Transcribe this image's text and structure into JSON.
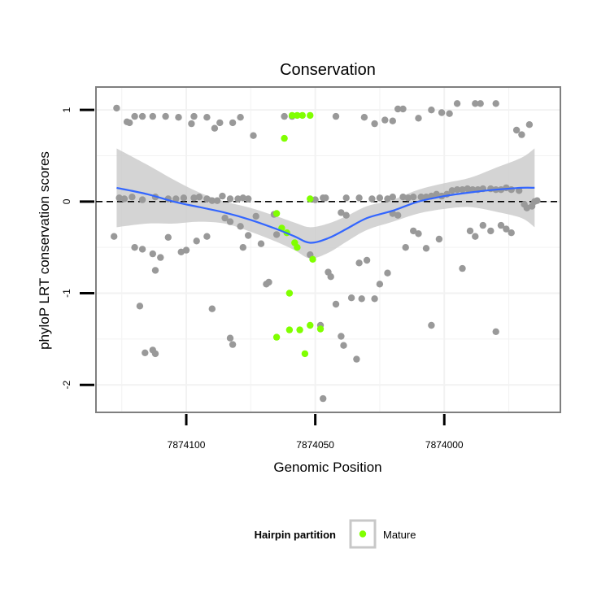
{
  "chart_data": {
    "type": "scatter",
    "title": "Conservation",
    "xlabel": "Genomic Position",
    "ylabel": "phyloP LRT conservation scores",
    "x_reversed": true,
    "xlim": [
      7874135,
      7873955
    ],
    "ylim": [
      -2.3,
      1.25
    ],
    "x_ticks": [
      7874100,
      7874050,
      7874000
    ],
    "x_tick_labels": [
      "7874100",
      "7874050",
      "7874000"
    ],
    "y_ticks": [
      -2,
      -1,
      0,
      1
    ],
    "y_tick_labels": [
      "-2",
      "-1",
      "0",
      "1"
    ],
    "grid": true,
    "reference_line": {
      "y": 0,
      "style": "dashed",
      "color": "#000000"
    },
    "colors": {
      "points": "#999999",
      "mature": "#80ff00",
      "smooth": "#3366ff",
      "ribbon": "#cccccc",
      "panel_border": "#7f7f7f",
      "grid": "#f2f2f2"
    },
    "legend": {
      "title": "Hairpin partition",
      "placement": "bottom",
      "entries": [
        {
          "label": "Mature",
          "color": "#80ff00"
        }
      ]
    },
    "series": [
      {
        "key": "other",
        "color": "#999999",
        "points": [
          [
            7874127,
            1.02
          ],
          [
            7874123,
            0.87
          ],
          [
            7874122,
            0.86
          ],
          [
            7874120,
            0.93
          ],
          [
            7874117,
            0.93
          ],
          [
            7874113,
            0.93
          ],
          [
            7874108,
            0.93
          ],
          [
            7874103,
            0.92
          ],
          [
            7874098,
            0.85
          ],
          [
            7874097,
            0.93
          ],
          [
            7874092,
            0.92
          ],
          [
            7874089,
            0.8
          ],
          [
            7874087,
            0.86
          ],
          [
            7874082,
            0.86
          ],
          [
            7874079,
            0.92
          ],
          [
            7874074,
            0.72
          ],
          [
            7874062,
            0.93
          ],
          [
            7874059,
            0.93
          ],
          [
            7874042,
            0.93
          ],
          [
            7874031,
            0.92
          ],
          [
            7874027,
            0.85
          ],
          [
            7874023,
            0.89
          ],
          [
            7874020,
            0.88
          ],
          [
            7874018,
            1.01
          ],
          [
            7874016,
            1.01
          ],
          [
            7874010,
            0.91
          ],
          [
            7874005,
            1.0
          ],
          [
            7874001,
            0.97
          ],
          [
            7873998,
            0.96
          ],
          [
            7873995,
            1.07
          ],
          [
            7873988,
            1.07
          ],
          [
            7873986,
            1.07
          ],
          [
            7873980,
            1.07
          ],
          [
            7873972,
            0.78
          ],
          [
            7873970,
            0.73
          ],
          [
            7873967,
            0.84
          ],
          [
            7874126,
            0.04
          ],
          [
            7874124,
            0.03
          ],
          [
            7874121,
            0.05
          ],
          [
            7874117,
            0.02
          ],
          [
            7874112,
            0.05
          ],
          [
            7874107,
            0.03
          ],
          [
            7874104,
            0.03
          ],
          [
            7874101,
            0.04
          ],
          [
            7874097,
            0.04
          ],
          [
            7874095,
            0.05
          ],
          [
            7874092,
            0.03
          ],
          [
            7874090,
            0.01
          ],
          [
            7874088,
            0.01
          ],
          [
            7874086,
            0.06
          ],
          [
            7874083,
            0.03
          ],
          [
            7874080,
            0.03
          ],
          [
            7874078,
            0.04
          ],
          [
            7874076,
            0.03
          ],
          [
            7874050,
            0.02
          ],
          [
            7874047,
            0.04
          ],
          [
            7874046,
            0.04
          ],
          [
            7874038,
            0.04
          ],
          [
            7874033,
            0.04
          ],
          [
            7874028,
            0.03
          ],
          [
            7874025,
            0.04
          ],
          [
            7874022,
            0.03
          ],
          [
            7874020,
            0.05
          ],
          [
            7874016,
            0.05
          ],
          [
            7874014,
            0.04
          ],
          [
            7874012,
            0.05
          ],
          [
            7874009,
            0.05
          ],
          [
            7874007,
            0.05
          ],
          [
            7874005,
            0.06
          ],
          [
            7874003,
            0.08
          ],
          [
            7874001,
            0.06
          ],
          [
            7873999,
            0.08
          ],
          [
            7873997,
            0.12
          ],
          [
            7873995,
            0.13
          ],
          [
            7873993,
            0.13
          ],
          [
            7873991,
            0.14
          ],
          [
            7873989,
            0.13
          ],
          [
            7873987,
            0.13
          ],
          [
            7873985,
            0.14
          ],
          [
            7873982,
            0.14
          ],
          [
            7873980,
            0.13
          ],
          [
            7873978,
            0.13
          ],
          [
            7873976,
            0.15
          ],
          [
            7873974,
            0.13
          ],
          [
            7873971,
            0.12
          ],
          [
            7873969,
            -0.03
          ],
          [
            7873968,
            -0.07
          ],
          [
            7873966,
            -0.05
          ],
          [
            7873965,
            0.0
          ],
          [
            7873964,
            0.01
          ],
          [
            7874128,
            -0.38
          ],
          [
            7874120,
            -0.5
          ],
          [
            7874117,
            -0.52
          ],
          [
            7874113,
            -0.57
          ],
          [
            7874112,
            -0.75
          ],
          [
            7874110,
            -0.61
          ],
          [
            7874107,
            -0.39
          ],
          [
            7874102,
            -0.55
          ],
          [
            7874100,
            -0.53
          ],
          [
            7874096,
            -0.43
          ],
          [
            7874092,
            -0.38
          ],
          [
            7874090,
            -1.17
          ],
          [
            7874085,
            -0.18
          ],
          [
            7874083,
            -0.22
          ],
          [
            7874079,
            -0.27
          ],
          [
            7874078,
            -0.5
          ],
          [
            7874076,
            -0.37
          ],
          [
            7874073,
            -0.16
          ],
          [
            7874071,
            -0.46
          ],
          [
            7874069,
            -0.9
          ],
          [
            7874068,
            -0.88
          ],
          [
            7874066,
            -0.14
          ],
          [
            7874065,
            -0.36
          ],
          [
            7874052,
            -0.58
          ],
          [
            7874048,
            -1.35
          ],
          [
            7874045,
            -0.77
          ],
          [
            7874044,
            -0.82
          ],
          [
            7874042,
            -1.12
          ],
          [
            7874040,
            -0.12
          ],
          [
            7874038,
            -0.15
          ],
          [
            7874036,
            -1.05
          ],
          [
            7874034,
            -1.72
          ],
          [
            7874033,
            -0.67
          ],
          [
            7874032,
            -1.06
          ],
          [
            7874030,
            -0.64
          ],
          [
            7874027,
            -1.06
          ],
          [
            7874025,
            -0.9
          ],
          [
            7874022,
            -0.78
          ],
          [
            7874020,
            -0.13
          ],
          [
            7874018,
            -0.15
          ],
          [
            7874015,
            -0.5
          ],
          [
            7874012,
            -0.32
          ],
          [
            7874010,
            -0.35
          ],
          [
            7874007,
            -0.51
          ],
          [
            7874005,
            -1.35
          ],
          [
            7874002,
            -0.41
          ],
          [
            7873993,
            -0.73
          ],
          [
            7873990,
            -0.32
          ],
          [
            7873988,
            -0.38
          ],
          [
            7873985,
            -0.26
          ],
          [
            7873982,
            -0.32
          ],
          [
            7873980,
            -1.42
          ],
          [
            7873978,
            -0.26
          ],
          [
            7873976,
            -0.3
          ],
          [
            7873974,
            -0.34
          ],
          [
            7874118,
            -1.14
          ],
          [
            7874116,
            -1.65
          ],
          [
            7874113,
            -1.62
          ],
          [
            7874112,
            -1.66
          ],
          [
            7874083,
            -1.49
          ],
          [
            7874082,
            -1.56
          ],
          [
            7874047,
            -2.15
          ],
          [
            7874040,
            -1.47
          ],
          [
            7874039,
            -1.57
          ]
        ]
      },
      {
        "key": "mature",
        "name": "Mature",
        "color": "#80ff00",
        "points": [
          [
            7874059,
            0.94
          ],
          [
            7874057,
            0.94
          ],
          [
            7874055,
            0.94
          ],
          [
            7874052,
            0.94
          ],
          [
            7874062,
            0.69
          ],
          [
            7874052,
            0.03
          ],
          [
            7874065,
            -0.13
          ],
          [
            7874063,
            -0.29
          ],
          [
            7874061,
            -0.34
          ],
          [
            7874058,
            -0.45
          ],
          [
            7874057,
            -0.5
          ],
          [
            7874051,
            -0.63
          ],
          [
            7874060,
            -1.0
          ],
          [
            7874065,
            -1.48
          ],
          [
            7874060,
            -1.4
          ],
          [
            7874056,
            -1.4
          ],
          [
            7874052,
            -1.35
          ],
          [
            7874048,
            -1.39
          ],
          [
            7874054,
            -1.66
          ]
        ]
      }
    ],
    "smooth": {
      "method": "loess",
      "x": [
        7874127,
        7874115,
        7874105,
        7874095,
        7874085,
        7874075,
        7874065,
        7874058,
        7874052,
        7874045,
        7874038,
        7874030,
        7874020,
        7874010,
        7874000,
        7873990,
        7873980,
        7873970,
        7873965
      ],
      "y": [
        0.15,
        0.08,
        0.0,
        -0.06,
        -0.12,
        -0.2,
        -0.3,
        -0.38,
        -0.45,
        -0.4,
        -0.3,
        -0.18,
        -0.1,
        0.0,
        0.06,
        0.1,
        0.13,
        0.15,
        0.15
      ],
      "band_half_width": [
        0.43,
        0.32,
        0.24,
        0.16,
        0.12,
        0.13,
        0.14,
        0.15,
        0.17,
        0.16,
        0.14,
        0.13,
        0.12,
        0.13,
        0.14,
        0.16,
        0.24,
        0.33,
        0.43
      ]
    }
  }
}
